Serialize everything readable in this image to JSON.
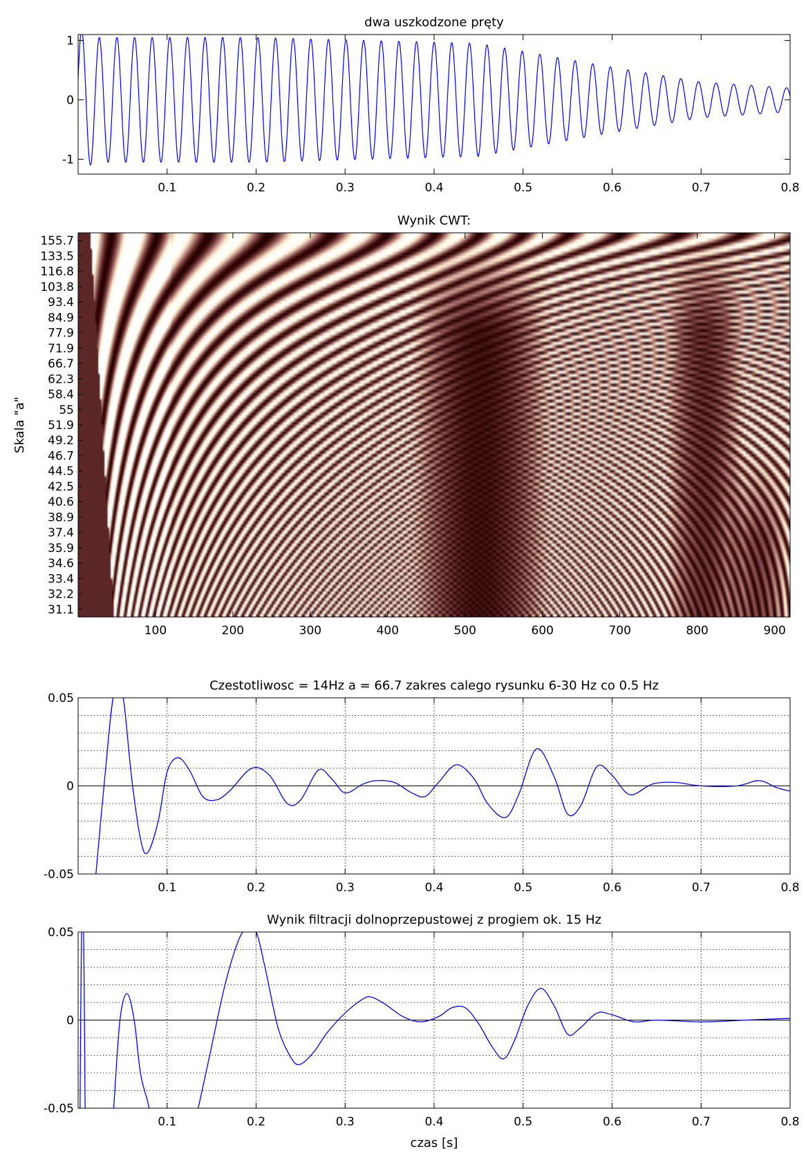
{
  "figure": {
    "xlabel": "czas [s]"
  },
  "chart_data": [
    {
      "id": "signal",
      "type": "line",
      "title": "dwa uszkodzone pręty",
      "xlim": [
        0.0,
        0.8
      ],
      "ylim": [
        -1.25,
        1.1
      ],
      "xticks": [
        0.1,
        0.2,
        0.3,
        0.4,
        0.5,
        0.6,
        0.7,
        0.8
      ],
      "xtick_labels": [
        "0.1",
        "0.2",
        "0.3",
        "0.4",
        "0.5",
        "0.6",
        "0.7",
        "0.8"
      ],
      "yticks": [
        -1,
        0,
        1
      ],
      "ytick_labels": [
        "-1",
        "0",
        "1"
      ],
      "grid": false,
      "series": [
        {
          "color": "#0000ff",
          "signal_model": {
            "frequency_hz": 50.5,
            "phase_rad": 0.3,
            "envelope_t": [
              0.0,
              0.02,
              0.2,
              0.45,
              0.6,
              0.7,
              0.8
            ],
            "envelope_amp": [
              1.2,
              1.05,
              1.05,
              0.95,
              0.55,
              0.3,
              0.2
            ]
          }
        }
      ]
    },
    {
      "id": "cwt",
      "type": "heatmap",
      "title": "Wynik CWT:",
      "ylabel": "Skala \"a\"",
      "xlim": [
        0,
        920
      ],
      "xticks": [
        100,
        200,
        300,
        400,
        500,
        600,
        700,
        800,
        900
      ],
      "xtick_labels": [
        "100",
        "200",
        "300",
        "400",
        "500",
        "600",
        "700",
        "800",
        "900"
      ],
      "ytick_labels": [
        "155.7",
        "133.5",
        "116.8",
        "103.8",
        "93.4",
        "84.9",
        "77.9",
        "71.9",
        "66.7",
        "62.3",
        "58.4",
        "55",
        "51.9",
        "49.2",
        "46.7",
        "44.5",
        "42.5",
        "40.6",
        "38.9",
        "37.4",
        "35.9",
        "34.6",
        "33.4",
        "32.2",
        "31.1"
      ],
      "colormap": [
        "#280000",
        "#6b3433",
        "#a7706c",
        "#d9b3a2",
        "#fff6d8",
        "#ffffff"
      ]
    },
    {
      "id": "band14hz",
      "type": "line",
      "title": "Czestotliwosc = 14Hz  a = 66.7 zakres calego rysunku 6-30 Hz co 0.5 Hz",
      "xlim": [
        0.0,
        0.8
      ],
      "ylim": [
        -0.05,
        0.05
      ],
      "xticks": [
        0.1,
        0.2,
        0.3,
        0.4,
        0.5,
        0.6,
        0.7,
        0.8
      ],
      "xtick_labels": [
        "0.1",
        "0.2",
        "0.3",
        "0.4",
        "0.5",
        "0.6",
        "0.7",
        "0.8"
      ],
      "yticks": [
        -0.05,
        0,
        0.05
      ],
      "ytick_labels": [
        "-0.05",
        "0",
        "0.05"
      ],
      "grid": true,
      "zero_line": true,
      "series": [
        {
          "color": "#0000ff",
          "x": [
            0.02,
            0.03,
            0.04,
            0.05,
            0.06,
            0.07,
            0.078,
            0.09,
            0.1,
            0.112,
            0.125,
            0.14,
            0.155,
            0.17,
            0.195,
            0.215,
            0.235,
            0.25,
            0.27,
            0.285,
            0.3,
            0.32,
            0.335,
            0.355,
            0.375,
            0.39,
            0.405,
            0.425,
            0.445,
            0.46,
            0.48,
            0.495,
            0.515,
            0.535,
            0.55,
            0.565,
            0.583,
            0.6,
            0.62,
            0.645,
            0.67,
            0.7,
            0.74,
            0.765,
            0.785,
            0.8
          ],
          "y": [
            -0.05,
            0.005,
            0.052,
            0.052,
            0.005,
            -0.03,
            -0.038,
            -0.02,
            0.008,
            0.016,
            0.009,
            -0.006,
            -0.008,
            -0.003,
            0.01,
            0.006,
            -0.01,
            -0.008,
            0.009,
            0.004,
            -0.004,
            0.001,
            0.003,
            0.002,
            -0.004,
            -0.006,
            0.002,
            0.012,
            0.004,
            -0.01,
            -0.018,
            -0.005,
            0.021,
            0.005,
            -0.016,
            -0.011,
            0.011,
            0.006,
            -0.005,
            0.001,
            0.002,
            0.0,
            0.0,
            0.003,
            -0.001,
            -0.003
          ]
        }
      ]
    },
    {
      "id": "lowpass",
      "type": "line",
      "title": "Wynik filtracji dolnoprzepustowej z progiem ok. 15 Hz",
      "xlabel": "czas [s]",
      "xlim": [
        0.0,
        0.8
      ],
      "ylim": [
        -0.05,
        0.05
      ],
      "xticks": [
        0.1,
        0.2,
        0.3,
        0.4,
        0.5,
        0.6,
        0.7,
        0.8
      ],
      "xtick_labels": [
        "0.1",
        "0.2",
        "0.3",
        "0.4",
        "0.5",
        "0.6",
        "0.7",
        "0.8"
      ],
      "yticks": [
        -0.05,
        0,
        0.05
      ],
      "ytick_labels": [
        "-0.05",
        "0",
        "0.05"
      ],
      "grid": true,
      "zero_line": true,
      "series": [
        {
          "color": "#0000ff",
          "segments": [
            {
              "x": [
                0.002,
                0.004,
                0.006,
                0.008
              ],
              "y": [
                -0.06,
                0.06,
                0.06,
                -0.06
              ]
            },
            {
              "x": [
                0.04,
                0.047,
                0.055,
                0.063,
                0.07,
                0.078,
                0.082
              ],
              "y": [
                -0.05,
                0.0,
                0.015,
                0.0,
                -0.03,
                -0.046,
                -0.055
              ]
            },
            {
              "x": [
                0.135,
                0.15,
                0.165,
                0.18,
                0.19,
                0.2,
                0.21,
                0.225,
                0.24,
                0.25,
                0.265,
                0.28,
                0.3,
                0.32,
                0.33,
                0.345,
                0.365,
                0.385,
                0.405,
                0.42,
                0.435,
                0.45,
                0.465,
                0.478,
                0.49,
                0.505,
                0.52,
                0.535,
                0.55,
                0.563,
                0.583,
                0.6,
                0.625,
                0.65,
                0.7,
                0.75,
                0.8
              ],
              "y": [
                -0.05,
                -0.015,
                0.02,
                0.045,
                0.052,
                0.05,
                0.03,
                -0.005,
                -0.022,
                -0.025,
                -0.018,
                -0.007,
                0.004,
                0.012,
                0.013,
                0.009,
                0.002,
                -0.001,
                0.002,
                0.007,
                0.007,
                -0.002,
                -0.015,
                -0.022,
                -0.012,
                0.008,
                0.018,
                0.008,
                -0.008,
                -0.005,
                0.004,
                0.003,
                -0.001,
                0.0,
                -0.001,
                0.0,
                0.001
              ]
            }
          ]
        }
      ]
    }
  ]
}
